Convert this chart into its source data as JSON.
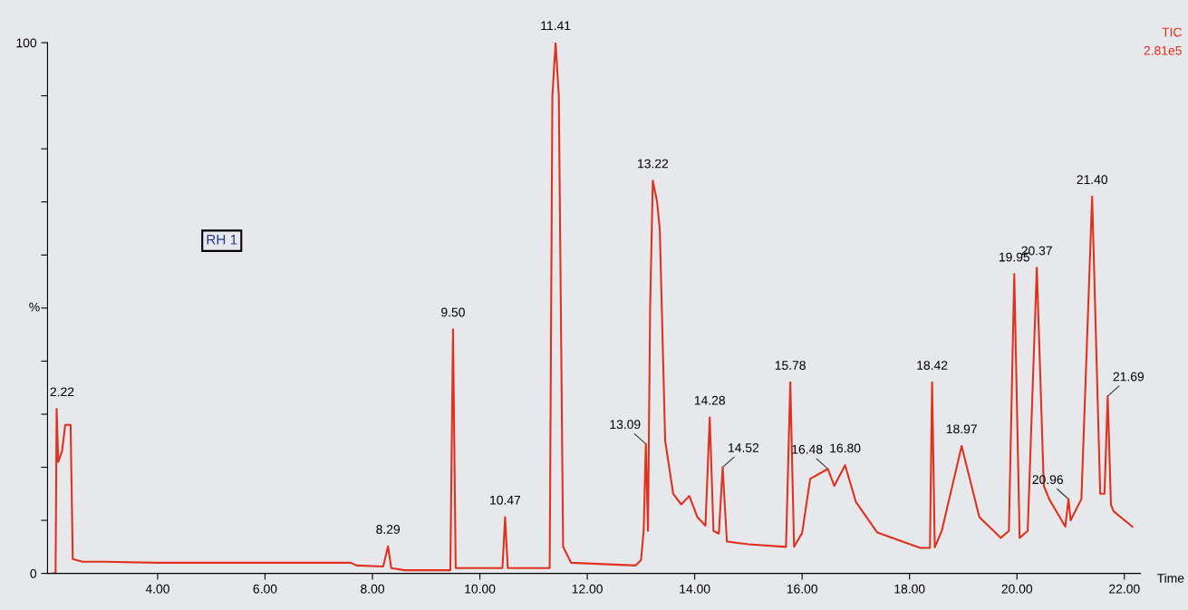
{
  "chart_data": {
    "type": "line",
    "xlabel": "Time",
    "ylabel": "%",
    "xlim": [
      1.95,
      22.3
    ],
    "xticks": [
      {
        "value": 4,
        "label": "4.00"
      },
      {
        "value": 6,
        "label": "6.00"
      },
      {
        "value": 8,
        "label": "8.00"
      },
      {
        "value": 10,
        "label": "10.00"
      },
      {
        "value": 12,
        "label": "12.00"
      },
      {
        "value": 14,
        "label": "14.00"
      },
      {
        "value": 16,
        "label": "16.00"
      },
      {
        "value": 18,
        "label": "18.00"
      },
      {
        "value": 20,
        "label": "20.00"
      },
      {
        "value": 22,
        "label": "22.00"
      }
    ],
    "ylim": [
      0,
      100
    ],
    "yticks": [
      0,
      {
        "value": 10,
        "label": null
      },
      {
        "value": 20,
        "label": null
      },
      {
        "value": 30,
        "label": null
      },
      {
        "value": 40,
        "label": null
      },
      {
        "value": 50,
        "label": null
      },
      {
        "value": 60,
        "label": null
      },
      {
        "value": 70,
        "label": null
      },
      {
        "value": 80,
        "label": null
      },
      {
        "value": 90,
        "label": null
      },
      100
    ],
    "grid": false,
    "legend": false,
    "marker": "none",
    "line_style": "solid",
    "series": [
      {
        "color": "#e0301e",
        "x": [
          2.05,
          2.1,
          2.12,
          2.15,
          2.22,
          2.28,
          2.38,
          2.42,
          2.6,
          3.0,
          4.0,
          7.6,
          7.7,
          8.2,
          8.29,
          8.35,
          8.6,
          9.45,
          9.5,
          9.55,
          10.42,
          10.47,
          10.52,
          11.3,
          11.35,
          11.41,
          11.47,
          11.55,
          11.7,
          12.9,
          13.0,
          13.05,
          13.09,
          13.13,
          13.17,
          13.22,
          13.3,
          13.35,
          13.45,
          13.6,
          13.75,
          13.9,
          14.05,
          14.2,
          14.28,
          14.35,
          14.45,
          14.52,
          14.6,
          15.0,
          15.7,
          15.78,
          15.85,
          16.0,
          16.15,
          16.48,
          16.6,
          16.8,
          17.0,
          17.4,
          18.2,
          18.38,
          18.42,
          18.47,
          18.6,
          18.97,
          19.3,
          19.7,
          19.85,
          19.95,
          20.05,
          20.2,
          20.37,
          20.5,
          20.6,
          20.9,
          20.96,
          21.0,
          21.2,
          21.4,
          21.55,
          21.63,
          21.69,
          21.75,
          21.8,
          22.15
        ],
        "values": [
          0,
          0,
          31,
          21,
          23,
          28,
          28,
          2.7,
          2.2,
          2.2,
          2,
          2,
          1.5,
          1.3,
          5.1,
          1,
          0.6,
          0.6,
          46,
          1,
          1,
          10.6,
          1,
          1,
          90,
          100,
          90,
          5,
          2,
          1.5,
          2.5,
          8,
          24.4,
          8,
          50,
          74,
          70,
          64.8,
          25,
          15,
          13,
          14.6,
          10.6,
          9,
          29.4,
          8,
          7.5,
          20,
          6,
          5.5,
          5,
          36,
          5,
          7.6,
          17.8,
          19.7,
          16.5,
          20.4,
          13.5,
          7.7,
          4.8,
          4.8,
          36,
          4.9,
          8,
          24,
          10.6,
          6.7,
          8,
          56.4,
          6.7,
          8,
          57.6,
          16.5,
          14,
          8.8,
          14,
          10,
          14,
          71,
          15,
          15,
          33.4,
          13,
          11.7,
          8.8
        ]
      }
    ],
    "annotations": [
      {
        "text": "2.22",
        "x": 2.22,
        "y": 31
      },
      {
        "text": "8.29",
        "x": 8.29,
        "y": 5.1
      },
      {
        "text": "9.50",
        "x": 9.5,
        "y": 46
      },
      {
        "text": "10.47",
        "x": 10.47,
        "y": 10.6
      },
      {
        "text": "11.41",
        "x": 11.41,
        "y": 100
      },
      {
        "text": "13.09",
        "x": 13.09,
        "y": 24.4
      },
      {
        "text": "13.22",
        "x": 13.22,
        "y": 74
      },
      {
        "text": "14.28",
        "x": 14.28,
        "y": 29.4
      },
      {
        "text": "14.52",
        "x": 14.52,
        "y": 20
      },
      {
        "text": "15.78",
        "x": 15.78,
        "y": 36
      },
      {
        "text": "16.48",
        "x": 16.48,
        "y": 19.7
      },
      {
        "text": "16.80",
        "x": 16.8,
        "y": 20.4
      },
      {
        "text": "18.42",
        "x": 18.42,
        "y": 36
      },
      {
        "text": "18.97",
        "x": 18.97,
        "y": 24
      },
      {
        "text": "19.95",
        "x": 19.95,
        "y": 56.4
      },
      {
        "text": "20.37",
        "x": 20.37,
        "y": 57.6
      },
      {
        "text": "20.96",
        "x": 20.96,
        "y": 14
      },
      {
        "text": "21.40",
        "x": 21.4,
        "y": 71
      },
      {
        "text": "21.69",
        "x": 21.69,
        "y": 33.4
      },
      "RH 1",
      "TIC",
      "2.81e5"
    ]
  }
}
